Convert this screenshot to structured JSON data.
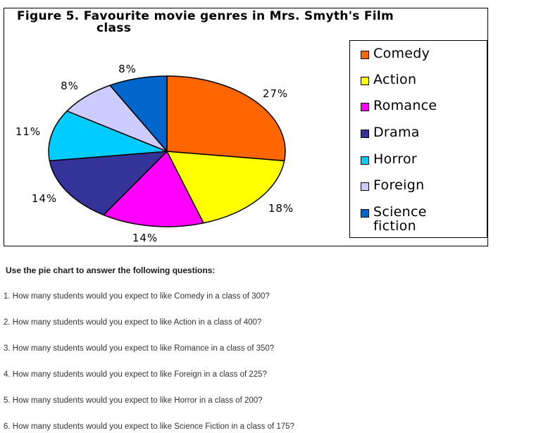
{
  "chart_data": {
    "type": "pie",
    "title_line1": "Figure 5. Favourite movie genres in Mrs. Smyth's Film",
    "title_line2": "class",
    "legend_placement": "right",
    "slices": [
      {
        "name": "Comedy",
        "value": 27,
        "label": "27%",
        "color": "#ff6600"
      },
      {
        "name": "Action",
        "value": 18,
        "label": "18%",
        "color": "#ffff00"
      },
      {
        "name": "Romance",
        "value": 14,
        "label": "14%",
        "color": "#ff00ff"
      },
      {
        "name": "Drama",
        "value": 14,
        "label": "14%",
        "color": "#333399"
      },
      {
        "name": "Horror",
        "value": 11,
        "label": "11%",
        "color": "#00ccff"
      },
      {
        "name": "Foreign",
        "value": 8,
        "label": "8%",
        "color": "#ccccff"
      },
      {
        "name": "Science fiction",
        "value": 8,
        "label": "8%",
        "color": "#0066cc"
      }
    ]
  },
  "legend": {
    "items": [
      {
        "label": "Comedy",
        "color": "#ff6600"
      },
      {
        "label": "Action",
        "color": "#ffff00"
      },
      {
        "label": "Romance",
        "color": "#ff00ff"
      },
      {
        "label": "Drama",
        "color": "#333399"
      },
      {
        "label": "Horror",
        "color": "#00ccff"
      },
      {
        "label": "Foreign",
        "color": "#ccccff"
      },
      {
        "label": "Science fiction",
        "color": "#0066cc"
      }
    ]
  },
  "instructions": "Use the pie chart to answer the following questions:",
  "questions": [
    "1. How many students would you expect to like Comedy in a class of 300?",
    "2. How many students would you expect to like Action in a class of 400?",
    "3. How many students would you expect to like Romance in a class of 350?",
    "4. How many students would you expect to like Foreign in a class of 225?",
    "5. How many students would you expect to like Horror in a class of 200?",
    "6. How many students would you expect to like Science Fiction in a class of 175?"
  ]
}
